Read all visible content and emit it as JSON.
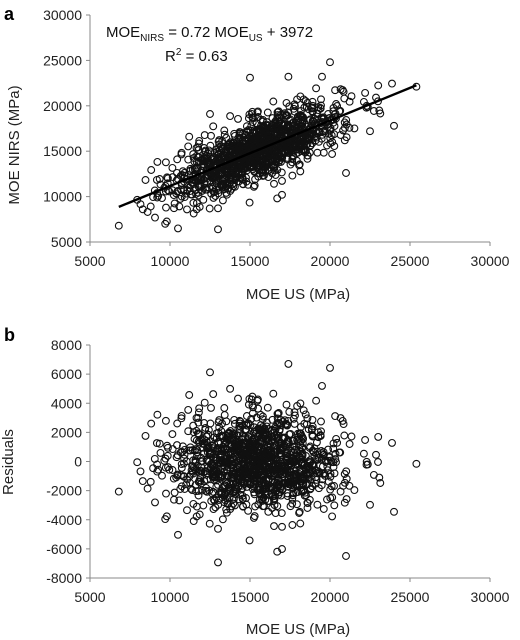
{
  "chart_data": [
    {
      "panel_label": "a",
      "type": "scatter",
      "xlabel": "MOE US (MPa)",
      "ylabel": "MOE NIRS (MPa)",
      "xlim": [
        5000,
        30000
      ],
      "ylim": [
        5000,
        30000
      ],
      "xticks": [
        "5000",
        "10000",
        "15000",
        "20000",
        "25000",
        "30000"
      ],
      "yticks": [
        "5000",
        "10000",
        "15000",
        "20000",
        "25000",
        "30000"
      ],
      "grid": false,
      "equation": {
        "prefix": "MOE",
        "sub1": "NIRS",
        "middle": " = 0.72 MOE",
        "sub2": "US",
        "suffix": " + 3972"
      },
      "r2": {
        "prefix": "R",
        "sup": "2",
        "suffix": " = 0.63"
      },
      "regression": {
        "slope": 0.72,
        "intercept": 3972,
        "x_range": [
          6800,
          25400
        ]
      },
      "series": [
        {
          "marker": "open-circle",
          "n_points": 1300,
          "x_mean": 15500,
          "x_sd": 2600,
          "y_sd_residual": 1650,
          "outliers": [
            [
              6800,
              6800
            ],
            [
              8300,
              8600
            ],
            [
              8600,
              8300
            ],
            [
              9200,
              9900
            ],
            [
              9700,
              7000
            ],
            [
              10500,
              6500
            ],
            [
              13000,
              6400
            ],
            [
              15000,
              23100
            ],
            [
              17400,
              23200
            ],
            [
              19500,
              23200
            ],
            [
              21000,
              12600
            ],
            [
              23000,
              20500
            ],
            [
              24000,
              17800
            ],
            [
              25400,
              22100
            ],
            [
              22500,
              17200
            ],
            [
              12500,
              19100
            ],
            [
              17000,
              10200
            ],
            [
              16700,
              9800
            ],
            [
              20000,
              24800
            ],
            [
              11200,
              16600
            ]
          ]
        }
      ]
    },
    {
      "panel_label": "b",
      "type": "scatter",
      "xlabel": "MOE US (MPa)",
      "ylabel": "Residuals",
      "xlim": [
        5000,
        30000
      ],
      "ylim": [
        -8000,
        8000
      ],
      "xticks": [
        "5000",
        "10000",
        "15000",
        "20000",
        "25000",
        "30000"
      ],
      "yticks": [
        "-8000",
        "-6000",
        "-4000",
        "-2000",
        "0",
        "2000",
        "4000",
        "6000",
        "8000"
      ],
      "grid": false,
      "series": [
        {
          "marker": "open-circle",
          "description_of": "residuals = MOE NIRS - predicted, plotted against MOE US"
        }
      ]
    }
  ]
}
